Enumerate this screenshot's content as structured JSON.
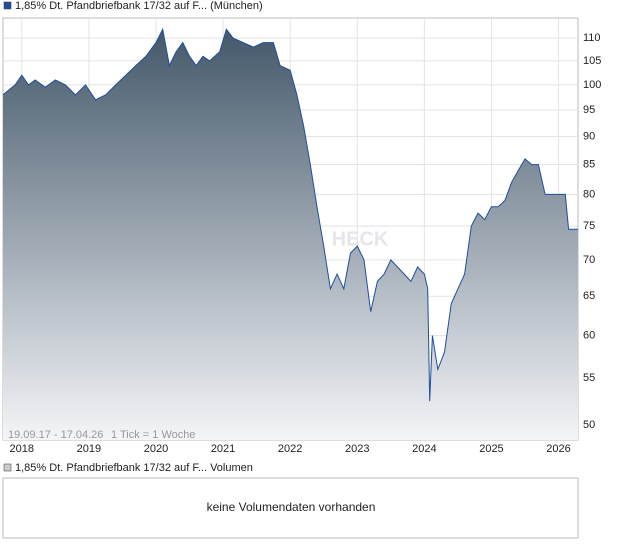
{
  "chart_data": {
    "type": "area",
    "legend_label": "1,85% Dt. Pfandbriefbank 17/32 auf F... (München)",
    "range_note": "19.09.17 - 17.04.26",
    "tick_note": "1 Tick = 1 Woche",
    "watermark": "HECK",
    "log_scale": true,
    "grid": true,
    "color": "#1f4e9c",
    "xlim": [
      2017.72,
      2026.29
    ],
    "xticks": [
      2018,
      2019,
      2020,
      2021,
      2022,
      2023,
      2024,
      2025,
      2026
    ],
    "ylim": [
      48.5,
      114.6
    ],
    "yticks": [
      50,
      55,
      60,
      65,
      70,
      75,
      80,
      85,
      90,
      95,
      100,
      105,
      110
    ],
    "x": [
      2017.72,
      2017.9,
      2018.0,
      2018.1,
      2018.2,
      2018.35,
      2018.5,
      2018.65,
      2018.8,
      2018.95,
      2019.1,
      2019.25,
      2019.4,
      2019.55,
      2019.7,
      2019.85,
      2020.0,
      2020.1,
      2020.2,
      2020.3,
      2020.4,
      2020.5,
      2020.6,
      2020.7,
      2020.8,
      2020.95,
      2021.05,
      2021.15,
      2021.3,
      2021.45,
      2021.6,
      2021.75,
      2021.85,
      2022.0,
      2022.1,
      2022.2,
      2022.3,
      2022.4,
      2022.5,
      2022.6,
      2022.7,
      2022.8,
      2022.9,
      2023.0,
      2023.1,
      2023.2,
      2023.3,
      2023.4,
      2023.5,
      2023.6,
      2023.7,
      2023.8,
      2023.9,
      2024.0,
      2024.05,
      2024.08,
      2024.12,
      2024.2,
      2024.3,
      2024.4,
      2024.5,
      2024.6,
      2024.7,
      2024.8,
      2024.9,
      2025.0,
      2025.1,
      2025.2,
      2025.3,
      2025.4,
      2025.5,
      2025.6,
      2025.7,
      2025.8,
      2025.95,
      2026.1,
      2026.15,
      2026.29
    ],
    "values": [
      98,
      100,
      102,
      100,
      101,
      99.5,
      101,
      100,
      98,
      100,
      97,
      98,
      100,
      102,
      104,
      106,
      109,
      112,
      104,
      107,
      109,
      106,
      104,
      106,
      105,
      107,
      112,
      110,
      109,
      108,
      109,
      109,
      104,
      103,
      98,
      92,
      85,
      78,
      72,
      66,
      68,
      66,
      71,
      72,
      70,
      63,
      67,
      68,
      70,
      69,
      68,
      67,
      69,
      68,
      66,
      52.5,
      60,
      56,
      58,
      64,
      66,
      68,
      75,
      77,
      76,
      78,
      78,
      79,
      82,
      84,
      86,
      85,
      85,
      80,
      80,
      80,
      74.5,
      74.5
    ],
    "volume_legend_label": "1,85% Dt. Pfandbriefbank 17/32 auf F... Volumen",
    "volume_message": "keine Volumendaten vorhanden"
  }
}
